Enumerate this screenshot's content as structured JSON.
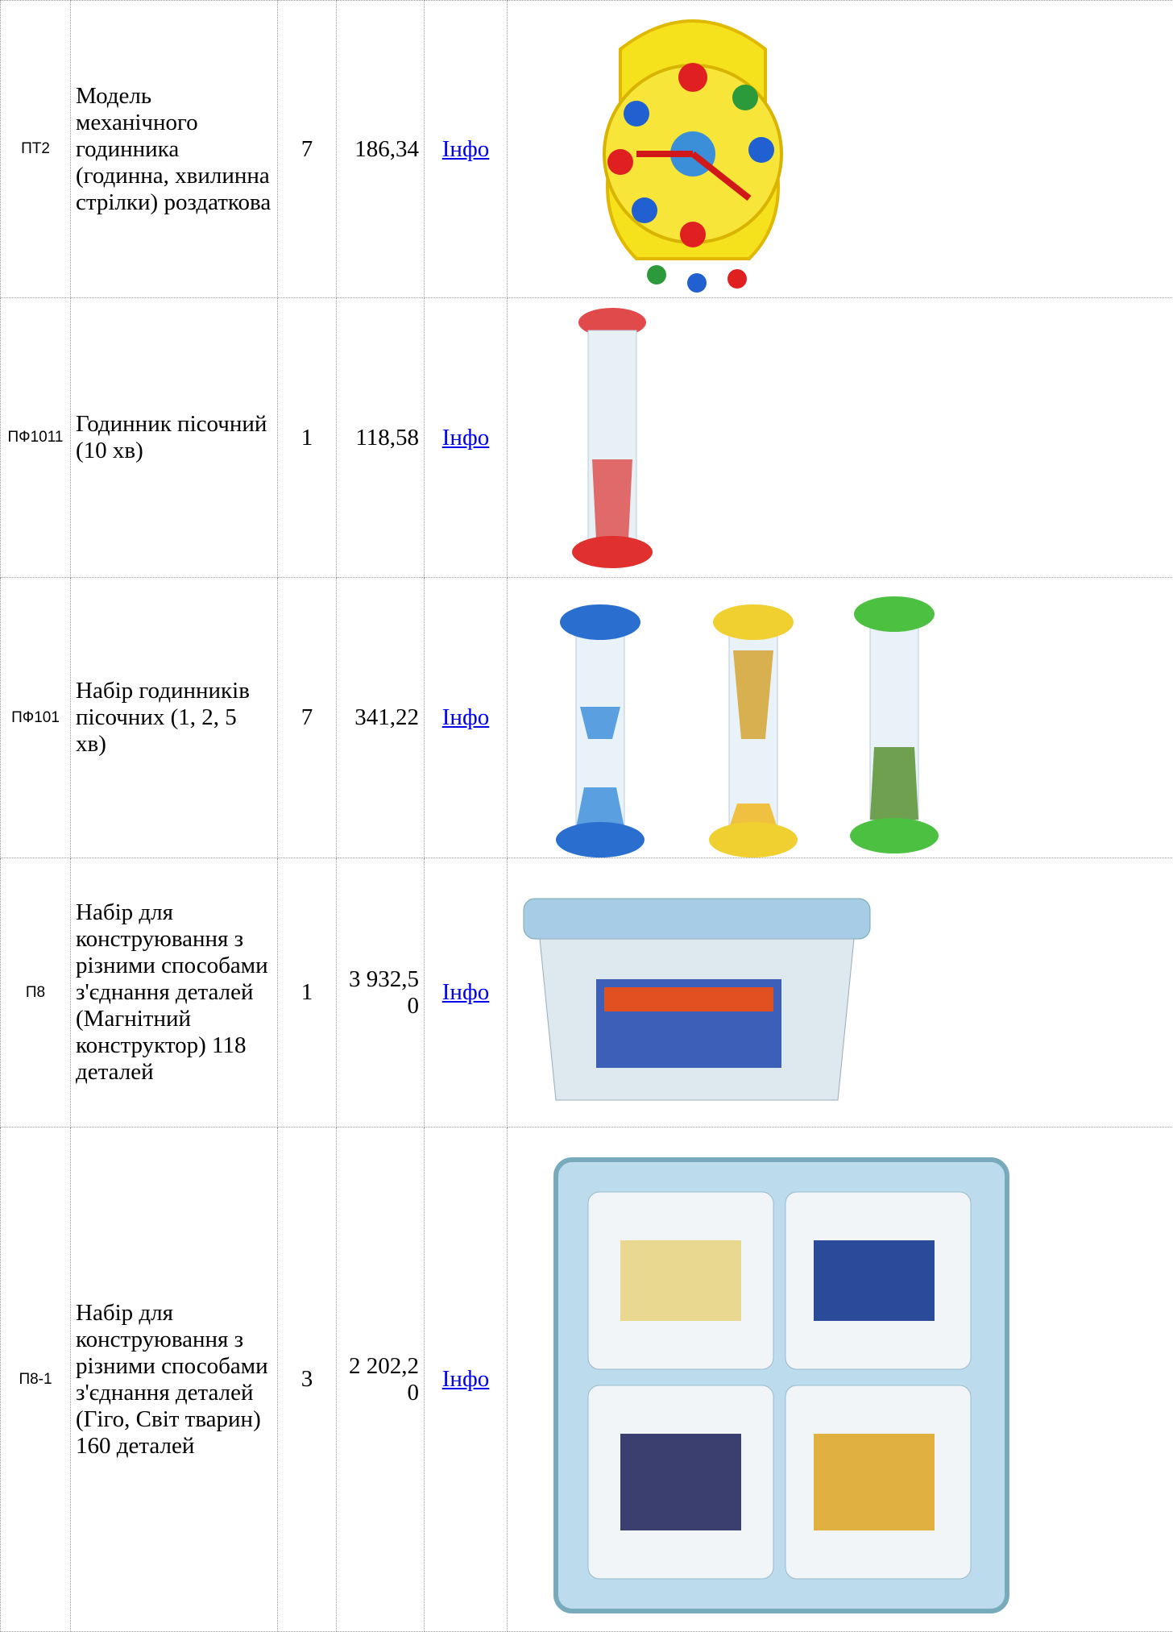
{
  "table": {
    "rows": [
      [
        "ПТ2",
        "Модель механічного годинника (годинна, хвилинна стрілки) роздаткова",
        "7",
        "186,34",
        "Інфо"
      ],
      [
        "ПФ1011",
        "Годинник пісочний (10 хв)",
        "1",
        "118,58",
        "Інфо"
      ],
      [
        "ПФ101",
        "Набір годинників пісочних (1, 2, 5 хв)",
        "7",
        "341,22",
        "Інфо"
      ],
      [
        "П8",
        "Набір для конструювання з різними способами з'єднання деталей (Магнітний конструктор) 118 деталей",
        "1",
        "3 932,50",
        "Інфо"
      ],
      [
        "П8-1",
        "Набір для конструювання з різними способами з'єднання деталей (Гіго, Світ тварин) 160 деталей",
        "3",
        "2 202,20",
        "Інфо"
      ]
    ]
  }
}
